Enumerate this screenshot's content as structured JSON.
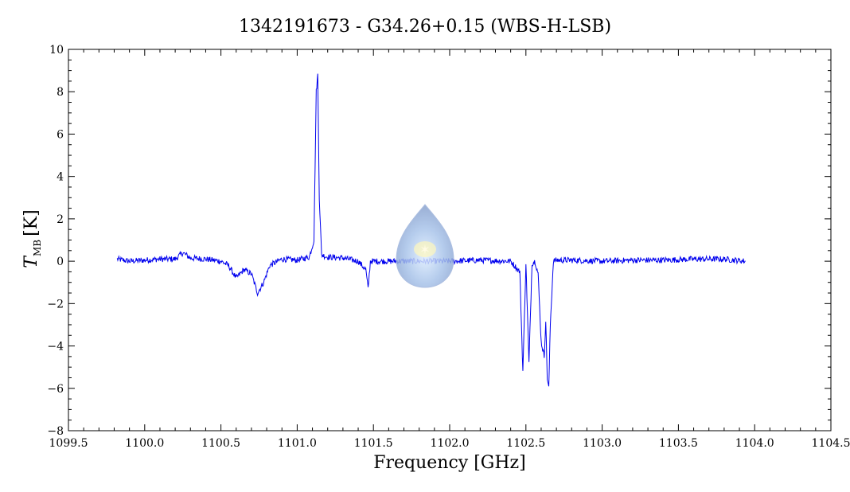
{
  "chart_data": {
    "type": "line",
    "title": "1342191673 - G34.26+0.15 (WBS-H-LSB)",
    "xlabel": "Frequency [GHz]",
    "ylabel": {
      "main": "T",
      "subscript": "MB",
      "unit": "[K]"
    },
    "xlim": [
      1099.5,
      1104.5
    ],
    "ylim": [
      -8,
      10
    ],
    "xticks": [
      "1099.5",
      "1100.0",
      "1100.5",
      "1101.0",
      "1101.5",
      "1102.0",
      "1102.5",
      "1103.0",
      "1103.5",
      "1104.0",
      "1104.5"
    ],
    "yticks": [
      "−8",
      "−6",
      "−4",
      "−2",
      "0",
      "2",
      "4",
      "6",
      "8",
      "10"
    ],
    "grid": false,
    "series": [
      {
        "color": "#0000ee",
        "x": [
          1099.82,
          1099.9,
          1100.0,
          1100.1,
          1100.2,
          1100.25,
          1100.3,
          1100.4,
          1100.5,
          1100.55,
          1100.6,
          1100.65,
          1100.7,
          1100.74,
          1100.78,
          1100.82,
          1100.9,
          1101.0,
          1101.08,
          1101.11,
          1101.125,
          1101.135,
          1101.145,
          1101.16,
          1101.2,
          1101.3,
          1101.4,
          1101.45,
          1101.465,
          1101.48,
          1101.6,
          1101.8,
          1102.0,
          1102.2,
          1102.4,
          1102.46,
          1102.48,
          1102.5,
          1102.52,
          1102.54,
          1102.56,
          1102.58,
          1102.6,
          1102.62,
          1102.63,
          1102.64,
          1102.65,
          1102.66,
          1102.68,
          1102.7,
          1102.8,
          1103.0,
          1103.2,
          1103.4,
          1103.6,
          1103.8,
          1103.94
        ],
        "y": [
          0.1,
          0.0,
          0.05,
          0.1,
          0.1,
          0.4,
          0.15,
          0.1,
          0.0,
          -0.2,
          -0.8,
          -0.4,
          -0.6,
          -1.5,
          -1.0,
          -0.2,
          0.1,
          0.05,
          0.2,
          1.0,
          8.0,
          8.8,
          3.0,
          0.3,
          0.2,
          0.15,
          0.0,
          -0.4,
          -1.3,
          0.0,
          0.0,
          0.0,
          0.0,
          0.05,
          0.0,
          -0.5,
          -5.2,
          -0.1,
          -4.8,
          -0.1,
          0.0,
          -0.6,
          -3.8,
          -4.5,
          -2.8,
          -5.5,
          -6.0,
          -3.0,
          0.0,
          0.05,
          0.05,
          0.0,
          0.05,
          0.05,
          0.1,
          0.1,
          0.0
        ]
      }
    ]
  }
}
